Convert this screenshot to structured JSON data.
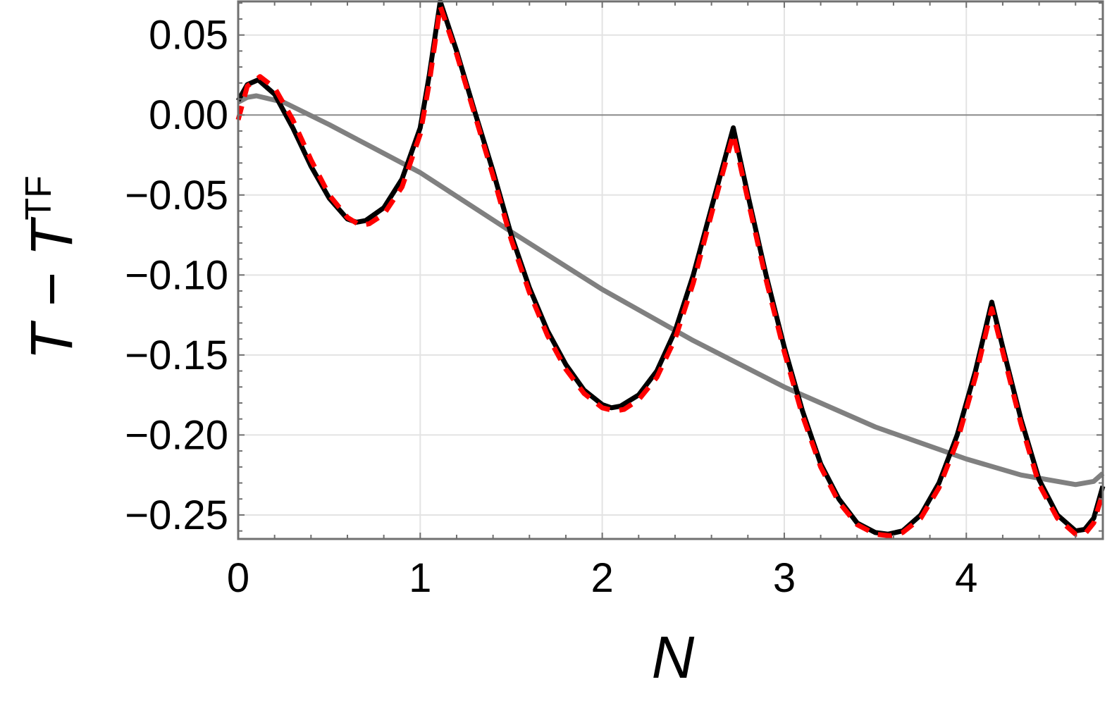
{
  "chart_data": {
    "type": "line",
    "xlabel": "N",
    "ylabel_main": "T − T",
    "ylabel_sup": "TF",
    "xlim": [
      0,
      4.75
    ],
    "ylim": [
      -0.265,
      0.071
    ],
    "grid": true,
    "x_ticks": [
      0,
      1,
      2,
      3,
      4
    ],
    "x_tick_labels": [
      "0",
      "1",
      "2",
      "3",
      "4"
    ],
    "y_ticks": [
      0.05,
      0.0,
      -0.05,
      -0.1,
      -0.15,
      -0.2,
      -0.25
    ],
    "y_tick_labels": [
      "0.05",
      "0.00",
      "−0.05",
      "−0.10",
      "−0.15",
      "−0.20",
      "−0.25"
    ],
    "series": [
      {
        "color": "#808080",
        "style": "solid",
        "x": [
          0,
          0.05,
          0.1,
          0.25,
          0.5,
          0.75,
          1,
          1.5,
          2,
          2.5,
          3,
          3.5,
          4,
          4.3,
          4.6,
          4.7,
          4.75
        ],
        "y": [
          0.008,
          0.011,
          0.012,
          0.008,
          -0.006,
          -0.021,
          -0.036,
          -0.073,
          -0.109,
          -0.141,
          -0.17,
          -0.195,
          -0.215,
          -0.225,
          -0.231,
          -0.229,
          -0.224
        ]
      },
      {
        "color": "#000000",
        "style": "solid",
        "x": [
          0,
          0.05,
          0.11,
          0.2,
          0.3,
          0.4,
          0.5,
          0.6,
          0.65,
          0.7,
          0.8,
          0.9,
          1.0,
          1.05,
          1.11,
          1.2,
          1.3,
          1.4,
          1.5,
          1.6,
          1.7,
          1.8,
          1.9,
          2.0,
          2.05,
          2.1,
          2.2,
          2.3,
          2.4,
          2.5,
          2.6,
          2.72,
          2.8,
          2.9,
          3.0,
          3.1,
          3.2,
          3.3,
          3.4,
          3.5,
          3.57,
          3.65,
          3.75,
          3.85,
          3.95,
          4.05,
          4.14,
          4.2,
          4.3,
          4.4,
          4.5,
          4.6,
          4.65,
          4.7,
          4.75
        ],
        "y": [
          0.009,
          0.019,
          0.022,
          0.013,
          -0.008,
          -0.032,
          -0.052,
          -0.065,
          -0.067,
          -0.066,
          -0.058,
          -0.04,
          -0.008,
          0.025,
          0.071,
          0.04,
          0.002,
          -0.035,
          -0.075,
          -0.108,
          -0.135,
          -0.156,
          -0.172,
          -0.181,
          -0.183,
          -0.182,
          -0.175,
          -0.16,
          -0.135,
          -0.1,
          -0.058,
          -0.008,
          -0.05,
          -0.1,
          -0.145,
          -0.185,
          -0.218,
          -0.24,
          -0.255,
          -0.261,
          -0.262,
          -0.26,
          -0.25,
          -0.23,
          -0.2,
          -0.16,
          -0.117,
          -0.145,
          -0.19,
          -0.228,
          -0.25,
          -0.26,
          -0.259,
          -0.252,
          -0.232
        ]
      },
      {
        "color": "#ff0000",
        "style": "dashed",
        "x": [
          0,
          0.05,
          0.12,
          0.2,
          0.3,
          0.4,
          0.5,
          0.6,
          0.67,
          0.72,
          0.8,
          0.9,
          1.0,
          1.05,
          1.11,
          1.2,
          1.3,
          1.4,
          1.5,
          1.6,
          1.7,
          1.8,
          1.9,
          2.0,
          2.07,
          2.12,
          2.2,
          2.3,
          2.4,
          2.5,
          2.6,
          2.72,
          2.8,
          2.9,
          3.0,
          3.1,
          3.2,
          3.3,
          3.4,
          3.5,
          3.58,
          3.65,
          3.75,
          3.85,
          3.95,
          4.05,
          4.14,
          4.2,
          4.3,
          4.4,
          4.5,
          4.6,
          4.65,
          4.7,
          4.75
        ],
        "y": [
          -0.003,
          0.018,
          0.024,
          0.017,
          -0.003,
          -0.028,
          -0.05,
          -0.064,
          -0.069,
          -0.068,
          -0.062,
          -0.045,
          -0.012,
          0.02,
          0.068,
          0.038,
          0.0,
          -0.038,
          -0.078,
          -0.111,
          -0.138,
          -0.159,
          -0.174,
          -0.183,
          -0.185,
          -0.184,
          -0.178,
          -0.164,
          -0.14,
          -0.105,
          -0.062,
          -0.012,
          -0.053,
          -0.103,
          -0.148,
          -0.188,
          -0.22,
          -0.242,
          -0.256,
          -0.262,
          -0.263,
          -0.261,
          -0.252,
          -0.233,
          -0.204,
          -0.164,
          -0.121,
          -0.148,
          -0.193,
          -0.231,
          -0.252,
          -0.262,
          -0.262,
          -0.255,
          -0.236
        ]
      }
    ]
  }
}
